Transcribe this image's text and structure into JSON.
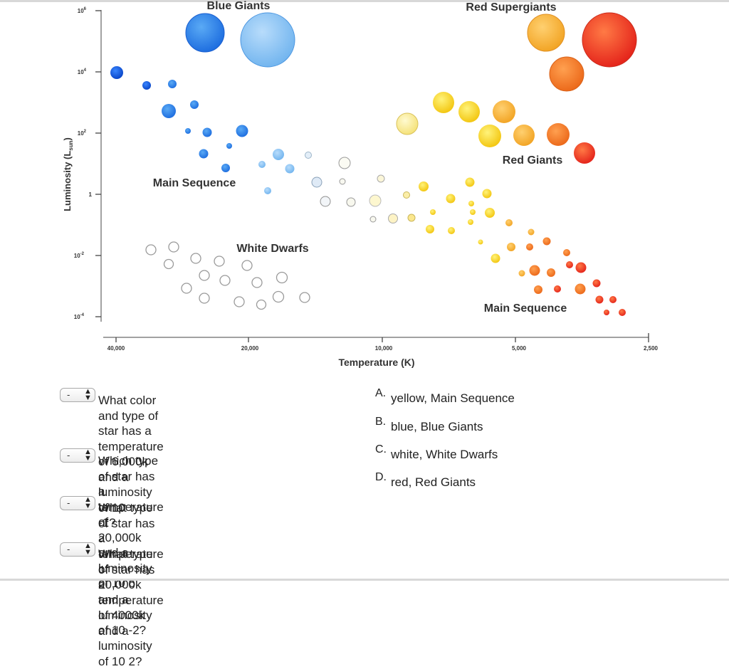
{
  "diagram": {
    "y_axis_label": "Luminosity (L",
    "y_axis_label_sub": "sun",
    "y_axis_label_close": ")",
    "x_axis_label": "Temperature (K)",
    "x_ticks": [
      "40,000",
      "20,000",
      "10,000",
      "5,000",
      "2,500"
    ],
    "y_ticks": [
      {
        "base": "10",
        "exp": "6"
      },
      {
        "base": "10",
        "exp": "4"
      },
      {
        "base": "10",
        "exp": "2"
      },
      {
        "base": "1",
        "exp": ""
      },
      {
        "base": "10",
        "exp": "-2"
      },
      {
        "base": "10",
        "exp": "-4"
      }
    ],
    "labels": {
      "blue_giants": "Blue Giants",
      "red_supergiants": "Red Supergiants",
      "red_giants": "Red Giants",
      "main_sequence_upper": "Main Sequence",
      "white_dwarfs": "White Dwarfs",
      "main_sequence_lower": "Main Sequence"
    }
  },
  "questions": [
    {
      "select_value": "-",
      "text_lines": [
        "What color and type of star has a",
        "temperature of 6,000k and a luminosity of 10",
        "-1?"
      ]
    },
    {
      "select_value": "-",
      "text_lines": [
        "Which type of star has a temperature of",
        "20,000k and a luminosity of 10 6"
      ]
    },
    {
      "select_value": "-",
      "text_lines": [
        "What type of star has a temperature of",
        "20,000k and a luminosity of 10 -2?"
      ]
    },
    {
      "select_value": "-",
      "text_lines": [
        "What type of star has a temperature of 4000k",
        "and a luminosity of 10 2?"
      ]
    }
  ],
  "answers": [
    {
      "letter": "A.",
      "text": "yellow, Main Sequence"
    },
    {
      "letter": "B.",
      "text": "blue, Blue Giants"
    },
    {
      "letter": "C.",
      "text": "white, White Dwarfs"
    },
    {
      "letter": "D.",
      "text": "red, Red Giants"
    }
  ]
}
